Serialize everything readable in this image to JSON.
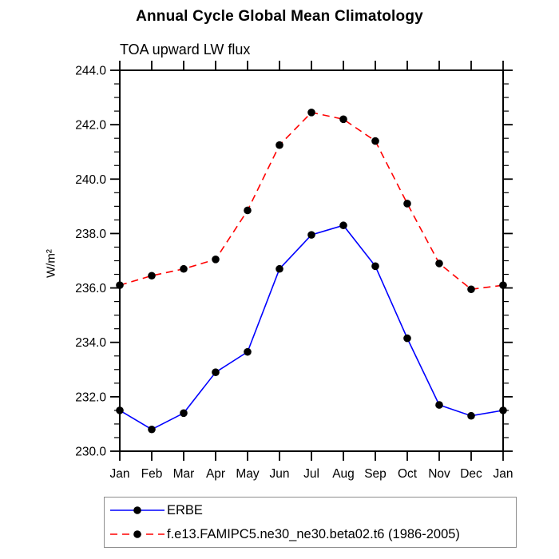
{
  "chart_data": {
    "type": "line",
    "title": "Annual Cycle Global Mean Climatology",
    "subtitle": "TOA upward LW flux",
    "ylabel": "W/m²",
    "x_categories": [
      "Jan",
      "Feb",
      "Mar",
      "Apr",
      "May",
      "Jun",
      "Jul",
      "Aug",
      "Sep",
      "Oct",
      "Nov",
      "Dec",
      "Jan"
    ],
    "ylim": [
      230.0,
      244.0
    ],
    "y_major_step": 2.0,
    "y_minor_step": 0.5,
    "y_tick_decimals": 1,
    "grid": false,
    "plot_bg": "#ffffff",
    "axis_color": "#000000",
    "legend_position": "bottom",
    "series": [
      {
        "name": "ERBE",
        "color": "#0000ff",
        "line_style": "solid",
        "marker": "filled-circle",
        "marker_color": "#000000",
        "values": [
          231.5,
          230.8,
          231.4,
          232.9,
          233.65,
          236.7,
          237.95,
          238.3,
          236.8,
          234.15,
          231.7,
          231.3,
          231.5
        ]
      },
      {
        "name": "f.e13.FAMIPC5.ne30_ne30.beta02.t6 (1986-2005)",
        "color": "#ff0000",
        "line_style": "dashed",
        "marker": "filled-circle",
        "marker_color": "#000000",
        "values": [
          236.1,
          236.45,
          236.7,
          237.05,
          238.85,
          241.25,
          242.45,
          242.2,
          241.4,
          239.1,
          236.9,
          235.95,
          236.1
        ]
      }
    ]
  }
}
